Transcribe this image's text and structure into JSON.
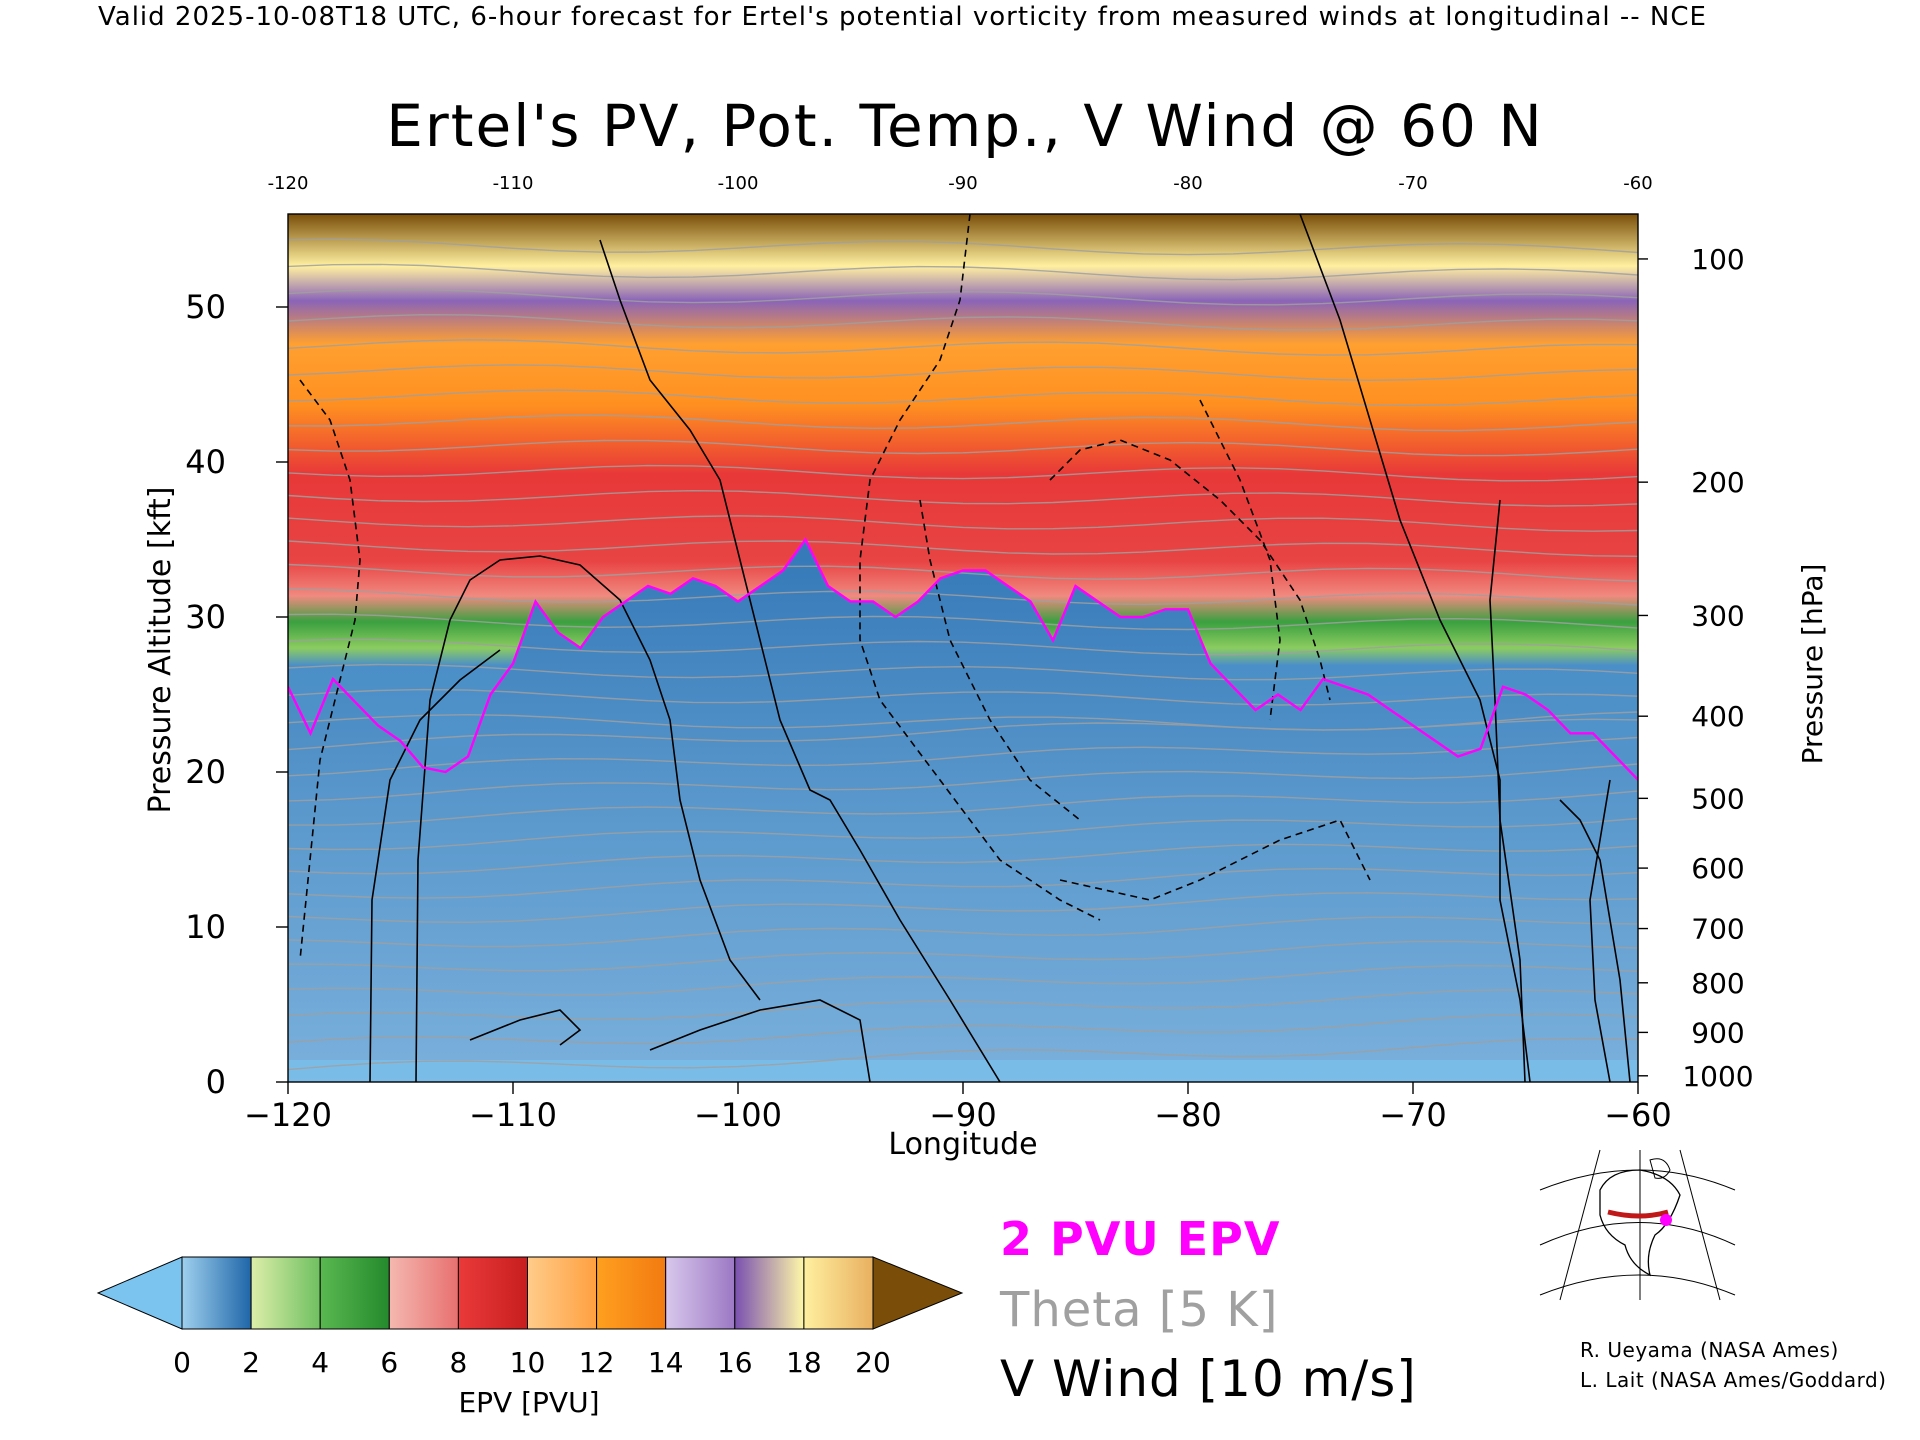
{
  "header": {
    "valid_line": "Valid 2025-10-08T18 UTC, 6-hour forecast for Ertel's potential vorticity from measured winds at longitudinal -- NCE"
  },
  "chart_data": {
    "type": "heatmap",
    "title": "Ertel's PV, Pot. Temp., V Wind @ 60 N",
    "xlabel": "Longitude",
    "ylabel": "Pressure Altitude [kft]",
    "ylabel_right": "Pressure [hPa]",
    "xlim": [
      -120,
      -60
    ],
    "ylim": [
      0,
      56
    ],
    "x_ticks": [
      "−120",
      "−110",
      "−100",
      "−90",
      "−80",
      "−70",
      "−60"
    ],
    "x_ticks_top": [
      "-120",
      "-110",
      "-100",
      "-90",
      "-80",
      "-70",
      "-60"
    ],
    "y_ticks": [
      "0",
      "10",
      "20",
      "30",
      "40",
      "50"
    ],
    "pressure_ticks": [
      {
        "label": "100",
        "kft": 53.1
      },
      {
        "label": "200",
        "kft": 38.7
      },
      {
        "label": "300",
        "kft": 30.1
      },
      {
        "label": "400",
        "kft": 23.6
      },
      {
        "label": "500",
        "kft": 18.3
      },
      {
        "label": "600",
        "kft": 13.8
      },
      {
        "label": "700",
        "kft": 9.9
      },
      {
        "label": "800",
        "kft": 6.4
      },
      {
        "label": "900",
        "kft": 3.2
      },
      {
        "label": "1000",
        "kft": 0.4
      }
    ],
    "two_pvu_boundary": {
      "x": [
        -120,
        -119,
        -118,
        -117,
        -116,
        -115,
        -114,
        -113,
        -112,
        -111,
        -110,
        -109,
        -108,
        -107,
        -106,
        -105,
        -104,
        -103,
        -102,
        -101,
        -100,
        -99,
        -98,
        -97,
        -96,
        -95,
        -94,
        -93,
        -92,
        -91,
        -90,
        -89,
        -88,
        -87,
        -86,
        -85,
        -84,
        -83,
        -82,
        -81,
        -80,
        -79,
        -78,
        -77,
        -76,
        -75,
        -74,
        -73,
        -72,
        -71,
        -70,
        -69,
        -68,
        -67,
        -66,
        -65,
        -64,
        -63,
        -62,
        -61,
        -60
      ],
      "kft": [
        25.5,
        22.5,
        26,
        24.5,
        23,
        22,
        20.3,
        20,
        21,
        25,
        27,
        31,
        29,
        28,
        30,
        31,
        32,
        31.5,
        32.5,
        32,
        31,
        32,
        33,
        35,
        32,
        31,
        31,
        30,
        31,
        32.5,
        33,
        33,
        32,
        31,
        28.5,
        32,
        31,
        30,
        30,
        30.5,
        30.5,
        27,
        25.5,
        24,
        25,
        24,
        26,
        25.5,
        25,
        24,
        23,
        22,
        21,
        21.5,
        25.5,
        25,
        24,
        22.5,
        22.5,
        21,
        19.5
      ]
    },
    "colorbar": {
      "label": "EPV [PVU]",
      "ticks": [
        "0",
        "2",
        "4",
        "6",
        "8",
        "10",
        "12",
        "14",
        "16",
        "18",
        "20"
      ],
      "segments": [
        {
          "from": 0,
          "to": 2,
          "colors": [
            "#9fd0ee",
            "#1f66a8"
          ]
        },
        {
          "from": 2,
          "to": 4,
          "colors": [
            "#ddeeaa",
            "#6fc060"
          ]
        },
        {
          "from": 4,
          "to": 6,
          "colors": [
            "#5ab850",
            "#248a2c"
          ]
        },
        {
          "from": 6,
          "to": 8,
          "colors": [
            "#f4b8b0",
            "#e87070"
          ]
        },
        {
          "from": 8,
          "to": 10,
          "colors": [
            "#ea3a3a",
            "#c81e1e"
          ]
        },
        {
          "from": 10,
          "to": 12,
          "colors": [
            "#ffcc8a",
            "#ffa040"
          ]
        },
        {
          "from": 12,
          "to": 14,
          "colors": [
            "#ffa020",
            "#f27a10"
          ]
        },
        {
          "from": 14,
          "to": 16,
          "colors": [
            "#d8c8ec",
            "#9c78c4"
          ]
        },
        {
          "from": 16,
          "to": 18,
          "colors": [
            "#7a50b0",
            "#fff8a8"
          ]
        },
        {
          "from": 18,
          "to": 20,
          "colors": [
            "#fff0a0",
            "#e8b060"
          ]
        }
      ],
      "below_color": "#7cc4f0",
      "above_color": "#7a4e08"
    },
    "colors": {
      "pv_line": "#ff00ff",
      "theta_line": "#a0a0a0",
      "wind_line": "#000000"
    }
  },
  "legend": {
    "pv_label": "2 PVU EPV",
    "theta_label": "Theta [5 K]",
    "wind_label": "V Wind [10 m/s]"
  },
  "credits": {
    "line1": "R. Ueyama (NASA Ames)",
    "line2": "L. Lait (NASA Ames/Goddard)"
  },
  "locator_map": {
    "icon": "globe-map-icon",
    "section_color": "#c01818",
    "point_color": "#ff00ff"
  }
}
